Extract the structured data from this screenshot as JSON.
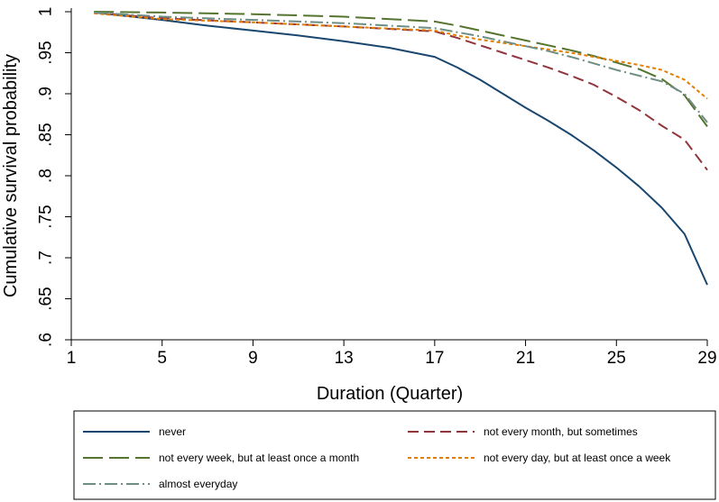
{
  "chart_data": {
    "type": "line",
    "xlabel": "Duration (Quarter)",
    "ylabel": "Cumulative survival probability",
    "xlim": [
      1,
      29
    ],
    "ylim": [
      0.6,
      1
    ],
    "x_ticks": [
      1,
      5,
      9,
      13,
      17,
      21,
      25,
      29
    ],
    "y_ticks": [
      0.6,
      0.65,
      0.7,
      0.75,
      0.8,
      0.85,
      0.9,
      0.95,
      1
    ],
    "y_tick_labels": [
      ".6",
      ".65",
      ".7",
      ".75",
      ".8",
      ".85",
      ".9",
      ".95",
      "1"
    ],
    "grid": false,
    "legend_position": "bottom",
    "series": [
      {
        "name": "never",
        "color": "#1a476f",
        "style": "solid",
        "x": [
          2,
          3,
          5,
          7,
          9,
          11,
          13,
          15,
          17,
          18,
          19,
          20,
          21,
          22,
          23,
          24,
          25,
          26,
          27,
          28,
          29
        ],
        "y": [
          0.999,
          0.996,
          0.99,
          0.983,
          0.977,
          0.971,
          0.964,
          0.956,
          0.945,
          0.932,
          0.917,
          0.9,
          0.883,
          0.867,
          0.85,
          0.831,
          0.81,
          0.787,
          0.761,
          0.729,
          0.667
        ]
      },
      {
        "name": "not every month, but sometimes",
        "color": "#90353b",
        "style": "dash",
        "x": [
          2,
          5,
          9,
          13,
          17,
          18,
          19,
          20,
          21,
          22,
          23,
          24,
          25,
          26,
          27,
          28,
          29
        ],
        "y": [
          0.999,
          0.992,
          0.987,
          0.982,
          0.976,
          0.968,
          0.959,
          0.95,
          0.941,
          0.932,
          0.922,
          0.911,
          0.896,
          0.88,
          0.861,
          0.844,
          0.807
        ]
      },
      {
        "name": "not every week, but at least once a month",
        "color": "#55752f",
        "style": "longdash",
        "x": [
          2,
          5,
          9,
          13,
          17,
          18,
          19,
          20,
          21,
          22,
          23,
          24,
          25,
          26,
          27,
          28,
          29
        ],
        "y": [
          1.0,
          0.999,
          0.997,
          0.994,
          0.988,
          0.983,
          0.977,
          0.971,
          0.965,
          0.959,
          0.953,
          0.946,
          0.938,
          0.93,
          0.918,
          0.898,
          0.86
        ]
      },
      {
        "name": "not every day, but at least once a week",
        "color": "#e37e00",
        "style": "shortdash",
        "x": [
          2,
          5,
          9,
          13,
          17,
          18,
          19,
          20,
          21,
          22,
          23,
          24,
          25,
          26,
          27,
          28,
          29
        ],
        "y": [
          0.998,
          0.991,
          0.987,
          0.982,
          0.977,
          0.971,
          0.966,
          0.962,
          0.958,
          0.954,
          0.95,
          0.945,
          0.94,
          0.935,
          0.929,
          0.917,
          0.894
        ]
      },
      {
        "name": "almost everyday",
        "color": "#6e8e84",
        "style": "dashdot",
        "x": [
          2,
          5,
          9,
          13,
          17,
          18,
          19,
          20,
          21,
          22,
          23,
          24,
          25,
          26,
          27,
          28,
          29
        ],
        "y": [
          0.999,
          0.994,
          0.99,
          0.986,
          0.98,
          0.975,
          0.97,
          0.964,
          0.958,
          0.952,
          0.945,
          0.937,
          0.929,
          0.922,
          0.915,
          0.9,
          0.865
        ]
      }
    ]
  }
}
